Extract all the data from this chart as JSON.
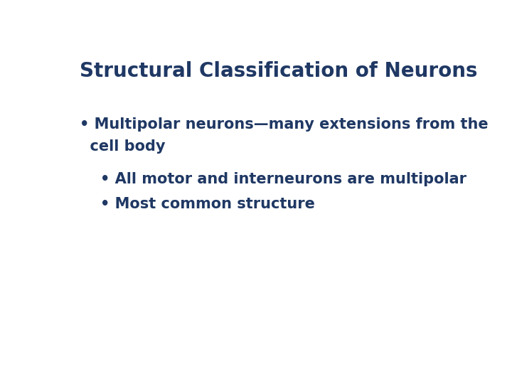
{
  "title": "Structural Classification of Neurons",
  "title_color": "#1F3864",
  "title_fontsize": 20,
  "background_color": "#ffffff",
  "body_color": "#1F3864",
  "body_fontsize": 15,
  "line1": "• Multipolar neurons—many extensions from the",
  "line2": "  cell body",
  "line3": "    • All motor and interneurons are multipolar",
  "line4": "    • Most common structure"
}
